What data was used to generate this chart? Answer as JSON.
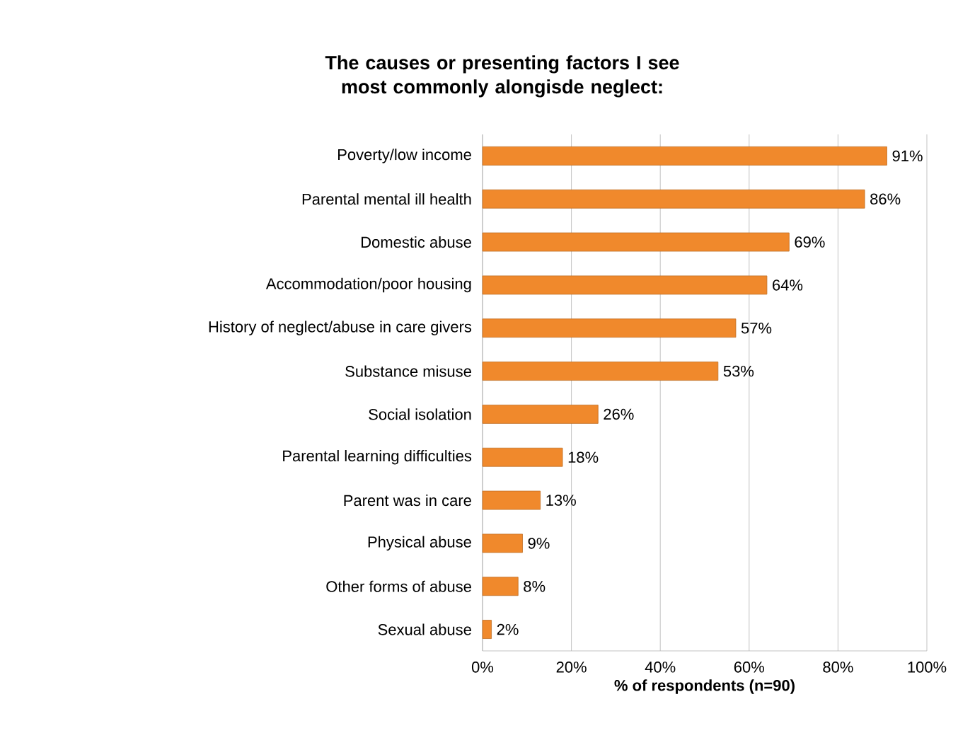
{
  "chart_data": {
    "type": "bar",
    "orientation": "horizontal",
    "title": "The causes or presenting factors I see most commonly alongisde neglect:",
    "xlabel": "% of respondents (n=90)",
    "categories": [
      "Poverty/low income",
      "Parental mental ill health",
      "Domestic abuse",
      "Accommodation/poor housing",
      "History of neglect/abuse in care givers",
      "Substance misuse",
      "Social isolation",
      "Parental learning difficulties",
      "Parent was in care",
      "Physical abuse",
      "Other forms of abuse",
      "Sexual abuse"
    ],
    "values": [
      91,
      86,
      69,
      64,
      57,
      53,
      26,
      18,
      13,
      9,
      8,
      2
    ],
    "value_labels": [
      "91%",
      "86%",
      "69%",
      "64%",
      "57%",
      "53%",
      "26%",
      "18%",
      "13%",
      "9%",
      "8%",
      "2%"
    ],
    "color": "#f0892c",
    "xlim": [
      0,
      100
    ],
    "xticks": [
      {
        "value": 0,
        "label": "0%"
      },
      {
        "value": 20,
        "label": "20%"
      },
      {
        "value": 40,
        "label": "40%"
      },
      {
        "value": 60,
        "label": "60%"
      },
      {
        "value": 80,
        "label": "80%"
      },
      {
        "value": 100,
        "label": "100%"
      }
    ],
    "grid": "x"
  }
}
